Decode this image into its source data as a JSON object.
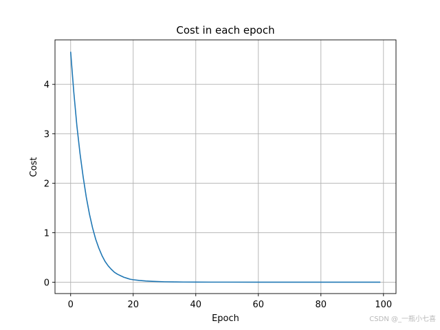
{
  "chart_data": {
    "type": "line",
    "title": "Cost in each epoch",
    "xlabel": "Epoch",
    "ylabel": "Cost",
    "xlim": [
      -5,
      104
    ],
    "ylim": [
      -0.23,
      4.9
    ],
    "xticks": [
      0,
      20,
      40,
      60,
      80,
      100
    ],
    "yticks": [
      0,
      1,
      2,
      3,
      4
    ],
    "grid": true,
    "line_color": "#1f77b4",
    "series": [
      {
        "x": [
          0,
          1,
          2,
          3,
          4,
          5,
          6,
          7,
          8,
          9,
          10,
          11,
          12,
          13,
          14,
          15,
          16,
          17,
          18,
          19,
          20,
          22,
          24,
          26,
          28,
          30,
          33,
          36,
          40,
          45,
          50,
          60,
          70,
          80,
          90,
          99
        ],
        "values": [
          4.66,
          3.85,
          3.16,
          2.6,
          2.13,
          1.72,
          1.38,
          1.1,
          0.87,
          0.69,
          0.54,
          0.42,
          0.33,
          0.26,
          0.2,
          0.16,
          0.13,
          0.1,
          0.08,
          0.06,
          0.05,
          0.035,
          0.025,
          0.018,
          0.012,
          0.008,
          0.005,
          0.003,
          0.002,
          0.001,
          0.001,
          0.0,
          0.0,
          0.0,
          0.0,
          0.0
        ]
      }
    ]
  },
  "watermark": "CSDN @_一瓶小七喜"
}
